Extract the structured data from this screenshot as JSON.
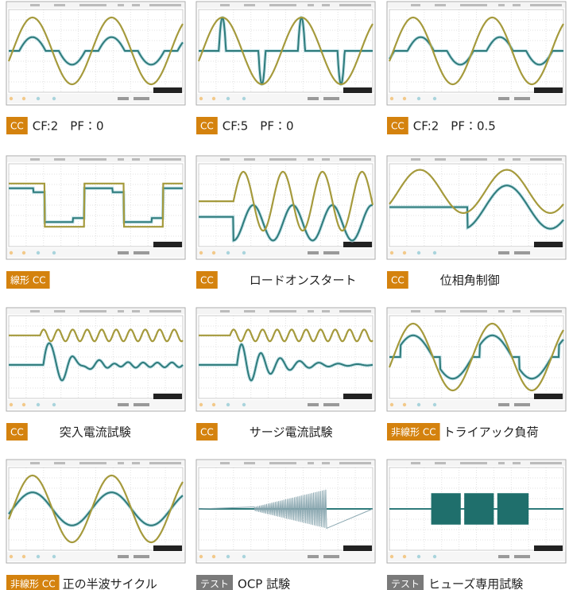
{
  "panels": [
    {
      "badge": "CC",
      "badge_color": "#d4820e",
      "caption": "CF:2　PF：0"
    },
    {
      "badge": "CC",
      "badge_color": "#d4820e",
      "caption": "CF:5　PF：0"
    },
    {
      "badge": "CC",
      "badge_color": "#d4820e",
      "caption": "CF:2　PF：0.5"
    },
    {
      "badge": "線形 CC",
      "badge_color": "#d4820e"
    },
    {
      "badge": "CC",
      "badge_color": "#d4820e",
      "caption": "ロードオンスタート"
    },
    {
      "badge": "CC",
      "badge_color": "#d4820e",
      "caption": "位相角制御"
    },
    {
      "badge": "CC",
      "badge_color": "#d4820e",
      "caption": "突入電流試験"
    },
    {
      "badge": "CC",
      "badge_color": "#d4820e",
      "caption": "サージ電流試験"
    },
    {
      "badge": "非線形 CC",
      "badge_color": "#d4820e",
      "caption": "トライアック負荷"
    },
    {
      "badge": "非線形 CC",
      "badge_color": "#d4820e",
      "caption": "正の半波サイクル"
    },
    {
      "badge": "テスト",
      "badge_color": "#7a7a7a",
      "caption": "OCP 試験"
    },
    {
      "badge": "テスト",
      "badge_color": "#7a7a7a",
      "caption": "ヒューズ専用試験"
    }
  ]
}
